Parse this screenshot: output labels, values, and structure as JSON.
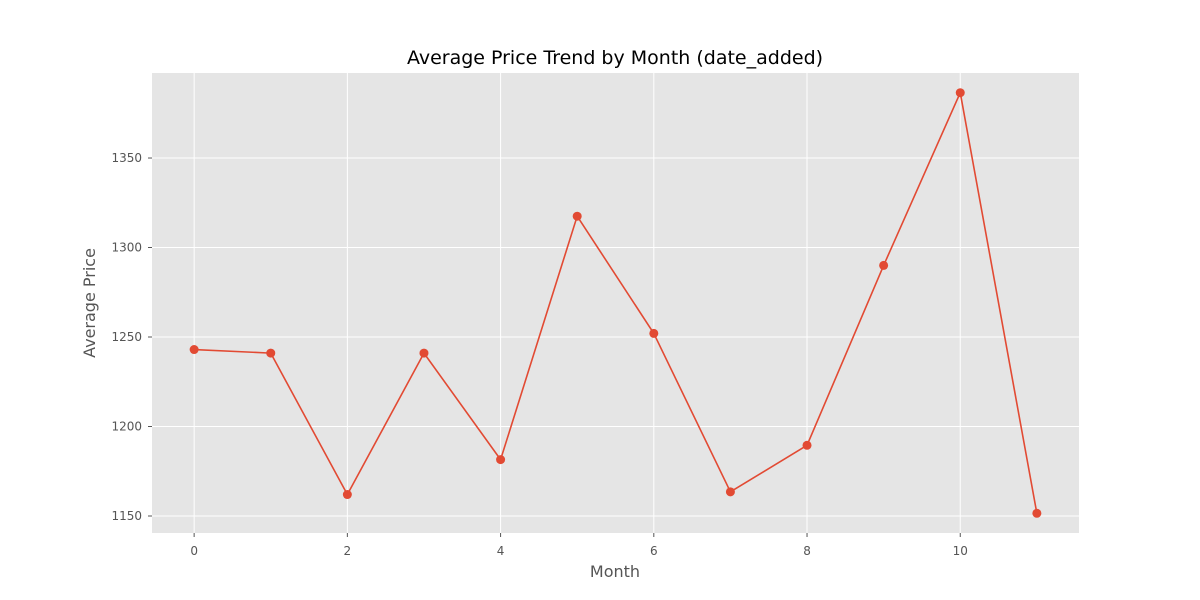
{
  "chart_data": {
    "type": "line",
    "title": "Average Price Trend by Month (date_added)",
    "xlabel": "Month",
    "ylabel": "Average Price",
    "x": [
      0,
      1,
      2,
      3,
      4,
      5,
      6,
      7,
      8,
      9,
      10,
      11
    ],
    "series": [
      {
        "values": [
          1243,
          1241,
          1162,
          1241,
          1181.5,
          1317.5,
          1252,
          1163.5,
          1189.5,
          1290,
          1386.5,
          1151.5
        ]
      }
    ],
    "xlim": [
      -0.55,
      11.55
    ],
    "ylim": [
      1140.5,
      1397.5
    ],
    "xticks": [
      0,
      2,
      4,
      6,
      8,
      10
    ],
    "yticks": [
      1150,
      1200,
      1250,
      1300,
      1350
    ],
    "grid": true,
    "style": {
      "background": "#E5E5E5",
      "grid_color": "#FFFFFF",
      "line_color": "#E24A33",
      "marker_color": "#E24A33",
      "tick_color": "#555555"
    }
  }
}
